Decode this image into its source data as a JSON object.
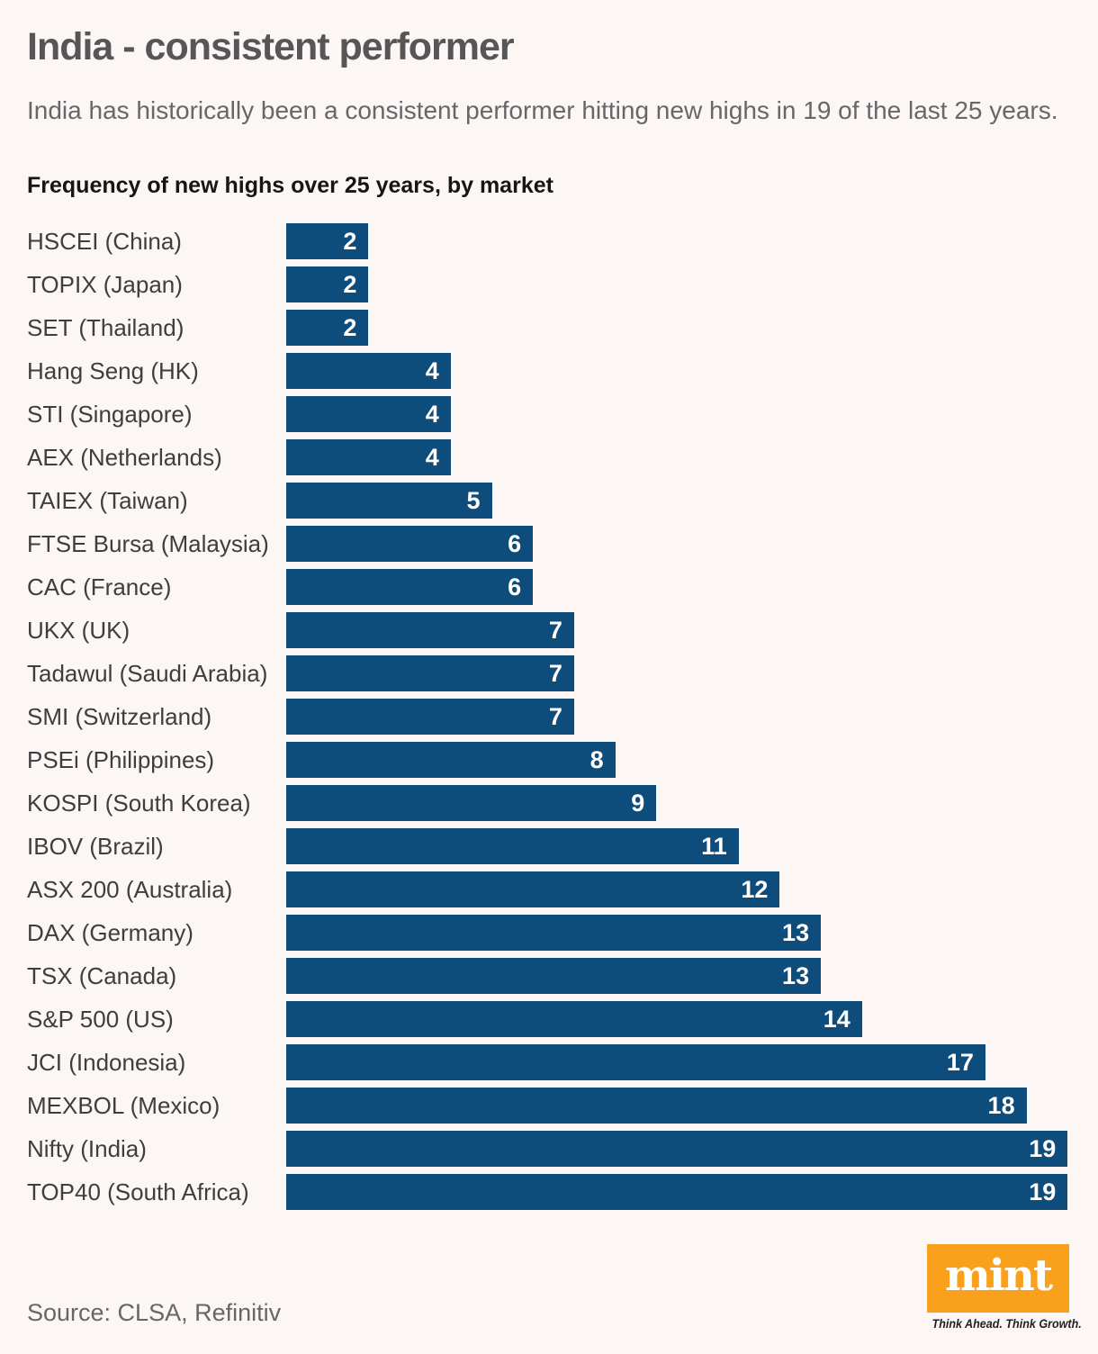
{
  "header": {
    "title": "India - consistent performer",
    "subtitle": "India has historically been a consistent performer hitting new highs in 19 of the last 25 years.",
    "chart_title": "Frequency of new highs over 25 years, by market"
  },
  "footer": {
    "source": "Source: CLSA, Refinitiv",
    "logo_text": "mint",
    "tagline": "Think Ahead. Think Growth."
  },
  "colors": {
    "background": "#FCF6F4",
    "bar": "#0E4D7B",
    "bar_value_text": "#FFFFFF",
    "label_text": "#3E3E40",
    "title_text": "#565659",
    "subtitle_text": "#67676A",
    "chart_title_text": "#161616",
    "source_text": "#67676A",
    "logo_background": "#F9A01D",
    "logo_text_color": "#FFFFFF",
    "tagline_text": "#231F20"
  },
  "chart_data": {
    "type": "bar",
    "orientation": "horizontal",
    "title": "Frequency of new highs over 25 years, by market",
    "categories": [
      "HSCEI (China)",
      "TOPIX (Japan)",
      "SET (Thailand)",
      "Hang Seng (HK)",
      "STI (Singapore)",
      "AEX (Netherlands)",
      "TAIEX (Taiwan)",
      "FTSE Bursa (Malaysia)",
      "CAC (France)",
      "UKX (UK)",
      "Tadawul (Saudi Arabia)",
      "SMI (Switzerland)",
      "PSEi (Philippines)",
      "KOSPI (South Korea)",
      "IBOV (Brazil)",
      "ASX 200 (Australia)",
      "DAX (Germany)",
      "TSX (Canada)",
      "S&P 500 (US)",
      "JCI (Indonesia)",
      "MEXBOL (Mexico)",
      "Nifty (India)",
      "TOP40 (South Africa)"
    ],
    "values": [
      2,
      2,
      2,
      4,
      4,
      4,
      5,
      6,
      6,
      7,
      7,
      7,
      8,
      9,
      11,
      12,
      13,
      13,
      14,
      17,
      18,
      19,
      19
    ],
    "xlabel": "",
    "ylabel": "",
    "xlim": [
      0,
      19
    ],
    "value_labels": "inside-end",
    "grid": false,
    "legend": false
  }
}
